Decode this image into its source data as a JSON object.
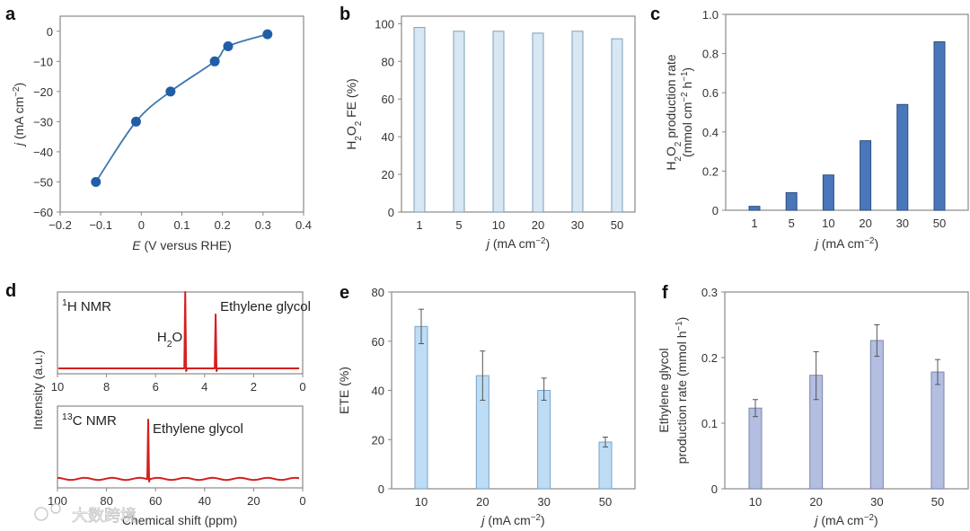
{
  "watermark": "大数跨境",
  "chart_data": [
    {
      "panel": "a",
      "type": "line",
      "xlabel": "*E* (V versus RHE)",
      "ylabel": "*j* (mA cm^{−2})",
      "xlim": [
        -0.2,
        0.4
      ],
      "ylim": [
        -60,
        5
      ],
      "xticks": [
        -0.2,
        -0.1,
        0,
        0.1,
        0.2,
        0.3,
        0.4
      ],
      "xtick_labels": [
        "−0.2",
        "−0.1",
        "0",
        "0.1",
        "0.2",
        "0.3",
        "0.4"
      ],
      "yticks": [
        0,
        -10,
        -20,
        -30,
        -40,
        -50,
        -60
      ],
      "ytick_labels": [
        "0",
        "−10",
        "−20",
        "−30",
        "−40",
        "−50",
        "−60"
      ],
      "x": [
        -0.112,
        -0.013,
        0.072,
        0.181,
        0.214,
        0.311
      ],
      "y": [
        -50,
        -30,
        -20,
        -10,
        -5,
        -1
      ],
      "color": "#1f5fa8"
    },
    {
      "panel": "b",
      "type": "bar",
      "xlabel": "*j* (mA cm^{−2})",
      "ylabel": "H_{2}O_{2} FE (%)",
      "categories": [
        "1",
        "5",
        "10",
        "20",
        "30",
        "50"
      ],
      "values": [
        98,
        96,
        96,
        95,
        96,
        92
      ],
      "ylim": [
        0,
        104
      ],
      "yticks": [
        0,
        20,
        40,
        60,
        80,
        100
      ],
      "ytick_labels": [
        "0",
        "20",
        "40",
        "60",
        "80",
        "100"
      ],
      "color": "#d7e7f3",
      "edge": "#7f9fb5"
    },
    {
      "panel": "c",
      "type": "bar",
      "xlabel": "*j* (mA cm^{−2})",
      "ylabel": "H_{2}O_{2} production rate",
      "ylabel2": "(mmol cm^{−2} h^{−1})",
      "categories": [
        "1",
        "5",
        "10",
        "20",
        "30",
        "50"
      ],
      "values": [
        0.02,
        0.09,
        0.18,
        0.355,
        0.54,
        0.86
      ],
      "ylim": [
        0,
        1.0
      ],
      "yticks": [
        0,
        0.2,
        0.4,
        0.6,
        0.8,
        1.0
      ],
      "ytick_labels": [
        "0",
        "0.2",
        "0.4",
        "0.6",
        "0.8",
        "1.0"
      ],
      "color": "#4a77b9",
      "edge": "#2c4e82"
    },
    {
      "panel": "d",
      "type": "line",
      "ylabel": "Intensity (a.u.)",
      "xlabel": "Chemical shift (ppm)",
      "spectra": [
        {
          "title": "^{1}H NMR",
          "xlim": [
            10,
            0
          ],
          "xticks": [
            10,
            8,
            6,
            4,
            2,
            0
          ],
          "xtick_labels": [
            "10",
            "8",
            "6",
            "4",
            "2",
            "0"
          ],
          "peaks": [
            {
              "x": 4.79,
              "label": "H_{2}O"
            },
            {
              "x": 3.55,
              "label": "Ethylene glycol"
            }
          ]
        },
        {
          "title": "^{13}C NMR",
          "xlim": [
            100,
            0
          ],
          "xticks": [
            100,
            80,
            60,
            40,
            20,
            0
          ],
          "xtick_labels": [
            "100",
            "80",
            "60",
            "40",
            "20",
            "0"
          ],
          "peaks": [
            {
              "x": 63,
              "label": "Ethylene glycol"
            }
          ]
        }
      ],
      "color": "#d42020"
    },
    {
      "panel": "e",
      "type": "bar",
      "xlabel": "*j* (mA cm^{−2})",
      "ylabel": "ETE (%)",
      "categories": [
        "10",
        "20",
        "30",
        "50"
      ],
      "values": [
        66,
        46,
        40,
        19
      ],
      "errors_low": [
        59,
        36,
        36,
        17
      ],
      "errors_high": [
        73,
        56,
        45,
        21
      ],
      "ylim": [
        0,
        80
      ],
      "yticks": [
        0,
        20,
        40,
        60,
        80
      ],
      "ytick_labels": [
        "0",
        "20",
        "40",
        "60",
        "80"
      ],
      "color": "#bddcf5",
      "edge": "#7fa3c4"
    },
    {
      "panel": "f",
      "type": "bar",
      "xlabel": "*j* (mA cm^{−2})",
      "ylabel": "Ethylene glycol",
      "ylabel2": "production rate (mmol h^{−1})",
      "categories": [
        "10",
        "20",
        "30",
        "50"
      ],
      "values": [
        0.123,
        0.173,
        0.226,
        0.178
      ],
      "errors_low": [
        0.11,
        0.136,
        0.202,
        0.159
      ],
      "errors_high": [
        0.136,
        0.209,
        0.25,
        0.197
      ],
      "ylim": [
        0,
        0.3
      ],
      "yticks": [
        0,
        0.1,
        0.2,
        0.3
      ],
      "ytick_labels": [
        "0",
        "0.1",
        "0.2",
        "0.3"
      ],
      "color": "#b4bee1",
      "edge": "#7a86ae"
    }
  ]
}
